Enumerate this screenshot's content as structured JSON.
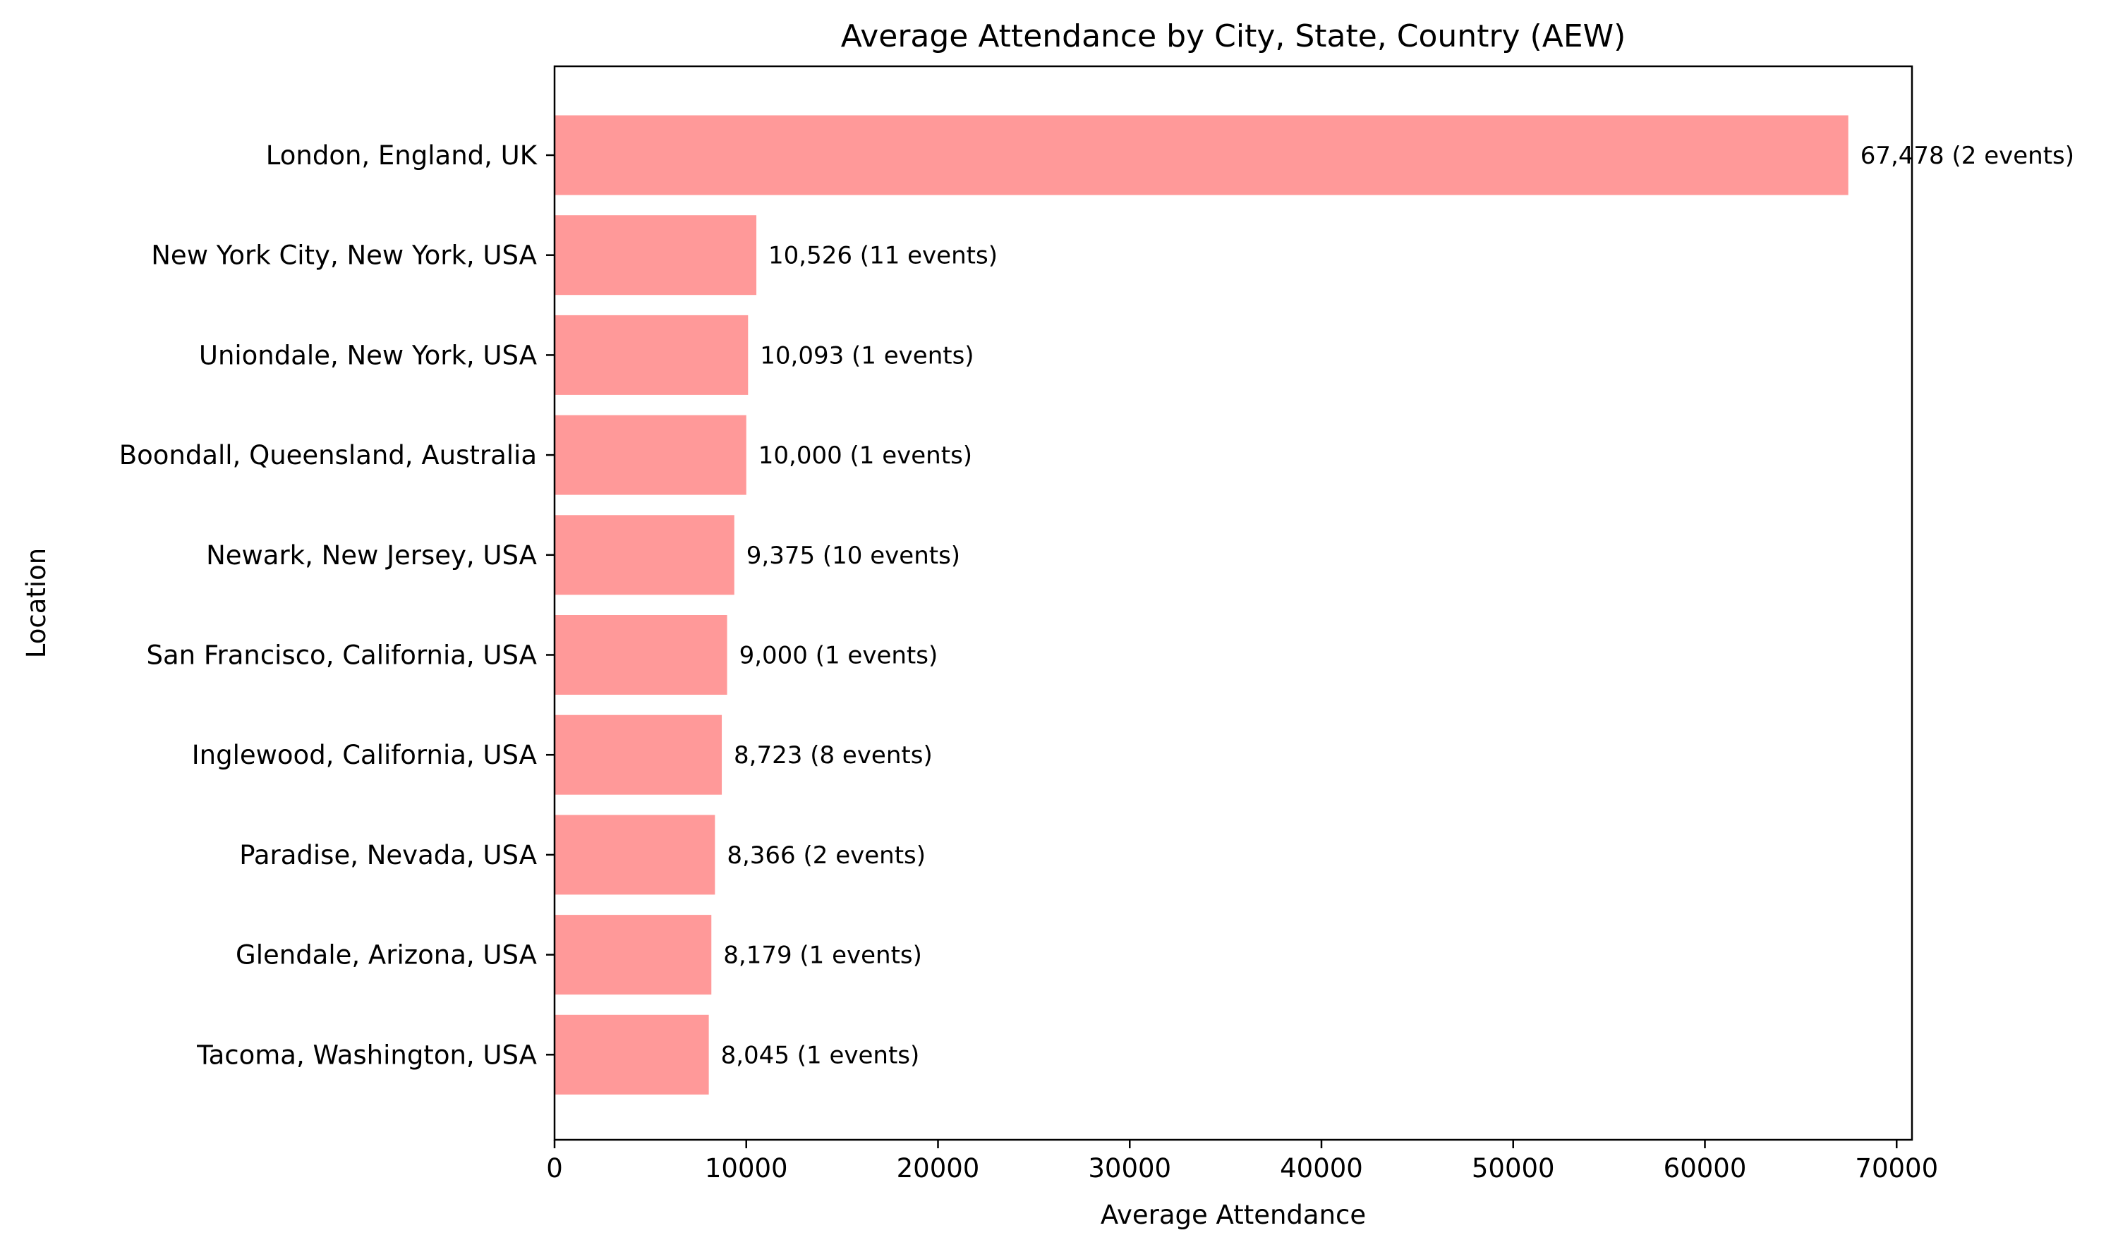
{
  "chart_data": {
    "type": "bar",
    "orientation": "horizontal",
    "title": "Average Attendance by City, State, Country (AEW)",
    "xlabel": "Average Attendance",
    "ylabel": "Location",
    "xlim": [
      0,
      70800
    ],
    "xticks": [
      0,
      10000,
      20000,
      30000,
      40000,
      50000,
      60000,
      70000
    ],
    "xtick_labels": [
      "0",
      "10000",
      "20000",
      "30000",
      "40000",
      "50000",
      "60000",
      "70000"
    ],
    "grid": false,
    "bar_color": "#ff9999",
    "categories": [
      "London, England, UK",
      "New York City, New York, USA",
      "Uniondale, New York, USA",
      "Boondall, Queensland, Australia",
      "Newark, New Jersey, USA",
      "San Francisco, California, USA",
      "Inglewood, California, USA",
      "Paradise, Nevada, USA",
      "Glendale, Arizona, USA",
      "Tacoma, Washington, USA"
    ],
    "values": [
      67478,
      10526,
      10093,
      10000,
      9375,
      9000,
      8723,
      8366,
      8179,
      8045
    ],
    "events": [
      2,
      11,
      1,
      1,
      10,
      1,
      8,
      2,
      1,
      1
    ],
    "data_labels": [
      "67,478 (2 events)",
      "10,526 (11 events)",
      "10,093 (1 events)",
      "10,000 (1 events)",
      "9,375 (10 events)",
      "9,000 (1 events)",
      "8,723 (8 events)",
      "8,366 (2 events)",
      "8,179 (1 events)",
      "8,045 (1 events)"
    ]
  }
}
